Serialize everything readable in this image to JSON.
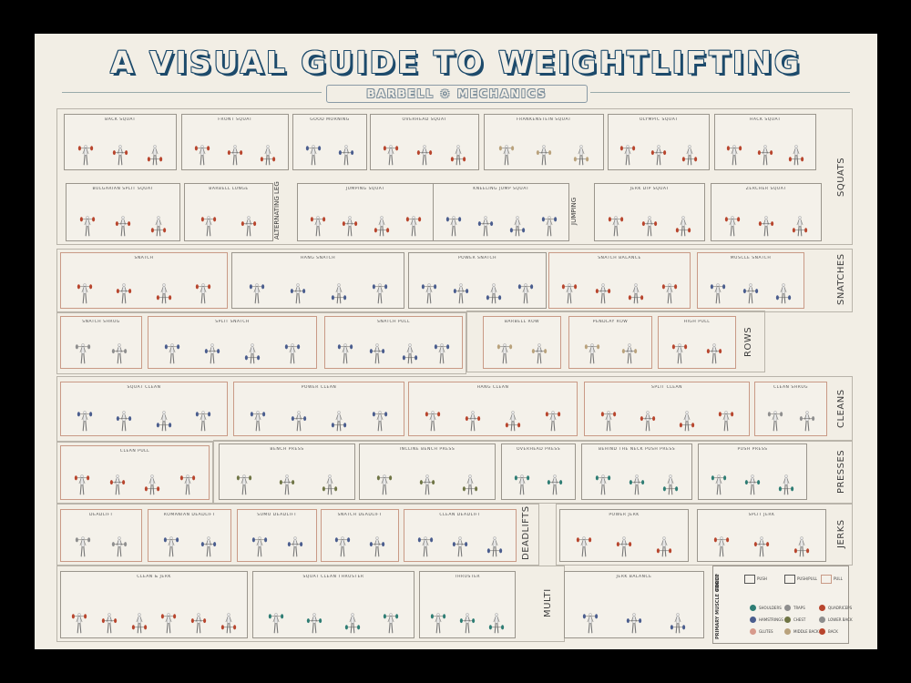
{
  "poster": {
    "title": "A VISUAL GUIDE TO WEIGHTLIFTING",
    "subtitle": "BARBELL ⚙ MECHANICS"
  },
  "colors": {
    "red": "#b8452d",
    "blue": "#4a5d8e",
    "teal": "#2e7d74",
    "olive": "#6f7545",
    "beige": "#b9a27c",
    "grey": "#8e8e8e",
    "pink": "#d79a8c"
  },
  "panels": [
    {
      "label": "BACK SQUAT",
      "figs": 3,
      "color": "red"
    },
    {
      "label": "FRONT SQUAT",
      "figs": 3,
      "color": "red"
    },
    {
      "label": "GOOD MORNING",
      "figs": 2,
      "color": "blue"
    },
    {
      "label": "OVERHEAD SQUAT",
      "figs": 3,
      "color": "red"
    },
    {
      "label": "FRANKENSTEIN SQUAT",
      "figs": 3,
      "color": "beige"
    },
    {
      "label": "OLYMPIC SQUAT",
      "figs": 3,
      "color": "red"
    },
    {
      "label": "HACK SQUAT",
      "figs": 3,
      "color": "red"
    },
    {
      "label": "BULGARIAN SPLIT SQUAT",
      "figs": 3,
      "color": "red"
    },
    {
      "label": "BARBELL LUNGE",
      "figs": 2,
      "color": "red"
    },
    {
      "label": "JUMPING SQUAT",
      "figs": 4,
      "color": "red"
    },
    {
      "label": "KNEELING JUMP SQUAT",
      "figs": 4,
      "color": "blue"
    },
    {
      "label": "JERK DIP SQUAT",
      "figs": 3,
      "color": "red"
    },
    {
      "label": "ZERCHER SQUAT",
      "figs": 3,
      "color": "red"
    },
    {
      "label": "SNATCH",
      "figs": 4,
      "color": "red"
    },
    {
      "label": "HANG SNATCH",
      "figs": 4,
      "color": "blue"
    },
    {
      "label": "POWER SNATCH",
      "figs": 4,
      "color": "blue"
    },
    {
      "label": "SNATCH BALANCE",
      "figs": 4,
      "color": "red"
    },
    {
      "label": "MUSCLE SNATCH",
      "figs": 3,
      "color": "blue"
    },
    {
      "label": "SNATCH SHRUG",
      "figs": 2,
      "color": "grey"
    },
    {
      "label": "SPLIT SNATCH",
      "figs": 4,
      "color": "blue"
    },
    {
      "label": "SNATCH PULL",
      "figs": 4,
      "color": "blue"
    },
    {
      "label": "BARBELL ROW",
      "figs": 2,
      "color": "beige"
    },
    {
      "label": "PENDLAY ROW",
      "figs": 2,
      "color": "beige"
    },
    {
      "label": "HIGH PULL",
      "figs": 2,
      "color": "red"
    },
    {
      "label": "SQUAT CLEAN",
      "figs": 4,
      "color": "blue"
    },
    {
      "label": "POWER CLEAN",
      "figs": 4,
      "color": "blue"
    },
    {
      "label": "HANG CLEAN",
      "figs": 4,
      "color": "red"
    },
    {
      "label": "SPLIT CLEAN",
      "figs": 4,
      "color": "red"
    },
    {
      "label": "CLEAN SHRUG",
      "figs": 2,
      "color": "grey"
    },
    {
      "label": "CLEAN PULL",
      "figs": 4,
      "color": "red"
    },
    {
      "label": "BENCH PRESS",
      "figs": 3,
      "color": "olive"
    },
    {
      "label": "INCLINE BENCH PRESS",
      "figs": 3,
      "color": "olive"
    },
    {
      "label": "OVERHEAD PRESS",
      "figs": 2,
      "color": "teal"
    },
    {
      "label": "BEHIND THE NECK PUSH PRESS",
      "figs": 3,
      "color": "teal"
    },
    {
      "label": "PUSH PRESS",
      "figs": 3,
      "color": "teal"
    },
    {
      "label": "DEADLIFT",
      "figs": 2,
      "color": "grey"
    },
    {
      "label": "ROMANIAN DEADLIFT",
      "figs": 2,
      "color": "blue"
    },
    {
      "label": "SUMO DEADLIFT",
      "figs": 2,
      "color": "blue"
    },
    {
      "label": "SNATCH DEADLIFT",
      "figs": 2,
      "color": "blue"
    },
    {
      "label": "CLEAN DEADLIFT",
      "figs": 3,
      "color": "blue"
    },
    {
      "label": "POWER JERK",
      "figs": 3,
      "color": "red"
    },
    {
      "label": "SPLIT JERK",
      "figs": 3,
      "color": "red"
    },
    {
      "label": "CLEAN & JERK",
      "figs": 6,
      "color": "red"
    },
    {
      "label": "SQUAT CLEAN THRUSTER",
      "figs": 4,
      "color": "teal"
    },
    {
      "label": "THRUSTER",
      "figs": 3,
      "color": "teal"
    },
    {
      "label": "JERK BALANCE",
      "figs": 3,
      "color": "blue"
    }
  ],
  "categories": [
    "SQUATS",
    "SNATCHES",
    "ROWS",
    "CLEANS",
    "PRESSES",
    "JERKS",
    "DEADLIFTS",
    "MULTI"
  ],
  "subcategories": [
    "ALTERNATING LEG",
    "JUMPING"
  ],
  "legend": {
    "force_title": "FORCE",
    "muscle_title": "PRIMARY MUSCLE GROUP",
    "force": [
      "PUSH",
      "PUSH/PULL",
      "PULL"
    ],
    "muscles": [
      {
        "name": "SHOULDERS",
        "color": "teal"
      },
      {
        "name": "TRAPS",
        "color": "grey"
      },
      {
        "name": "QUADRICEPS",
        "color": "red"
      },
      {
        "name": "HAMSTRINGS",
        "color": "blue"
      },
      {
        "name": "CHEST",
        "color": "olive"
      },
      {
        "name": "LOWER BACK",
        "color": "grey"
      },
      {
        "name": "GLUTES",
        "color": "pink"
      },
      {
        "name": "MIDDLE BACK",
        "color": "beige"
      },
      {
        "name": "BACK",
        "color": "red"
      }
    ]
  }
}
